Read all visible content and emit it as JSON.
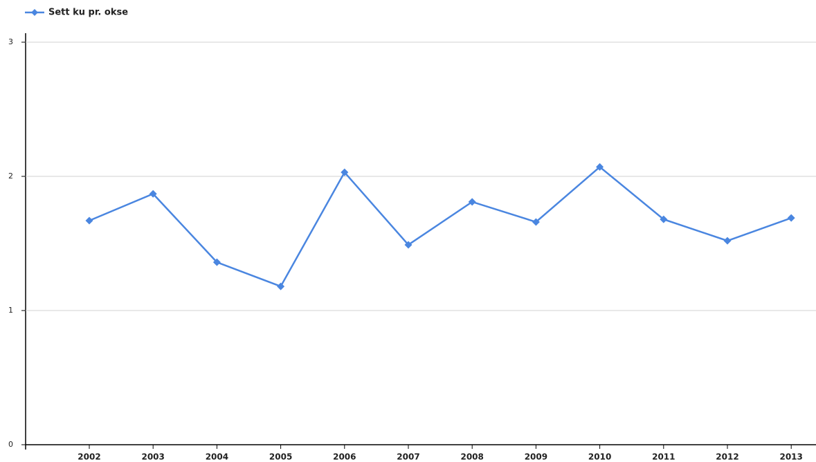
{
  "chart_data": {
    "type": "line",
    "categories": [
      "2002",
      "2003",
      "2004",
      "2005",
      "2006",
      "2007",
      "2008",
      "2009",
      "2010",
      "2011",
      "2012",
      "2013"
    ],
    "series": [
      {
        "name": "Sett ku pr. okse",
        "color": "#4a86e0",
        "values": [
          1.67,
          1.87,
          1.36,
          1.18,
          2.03,
          1.49,
          1.81,
          1.66,
          2.07,
          1.68,
          1.52,
          1.69
        ]
      }
    ],
    "ylim": [
      0,
      3
    ],
    "yticks": [
      0,
      1,
      2,
      3
    ],
    "grid": true,
    "legend": "top-left"
  }
}
